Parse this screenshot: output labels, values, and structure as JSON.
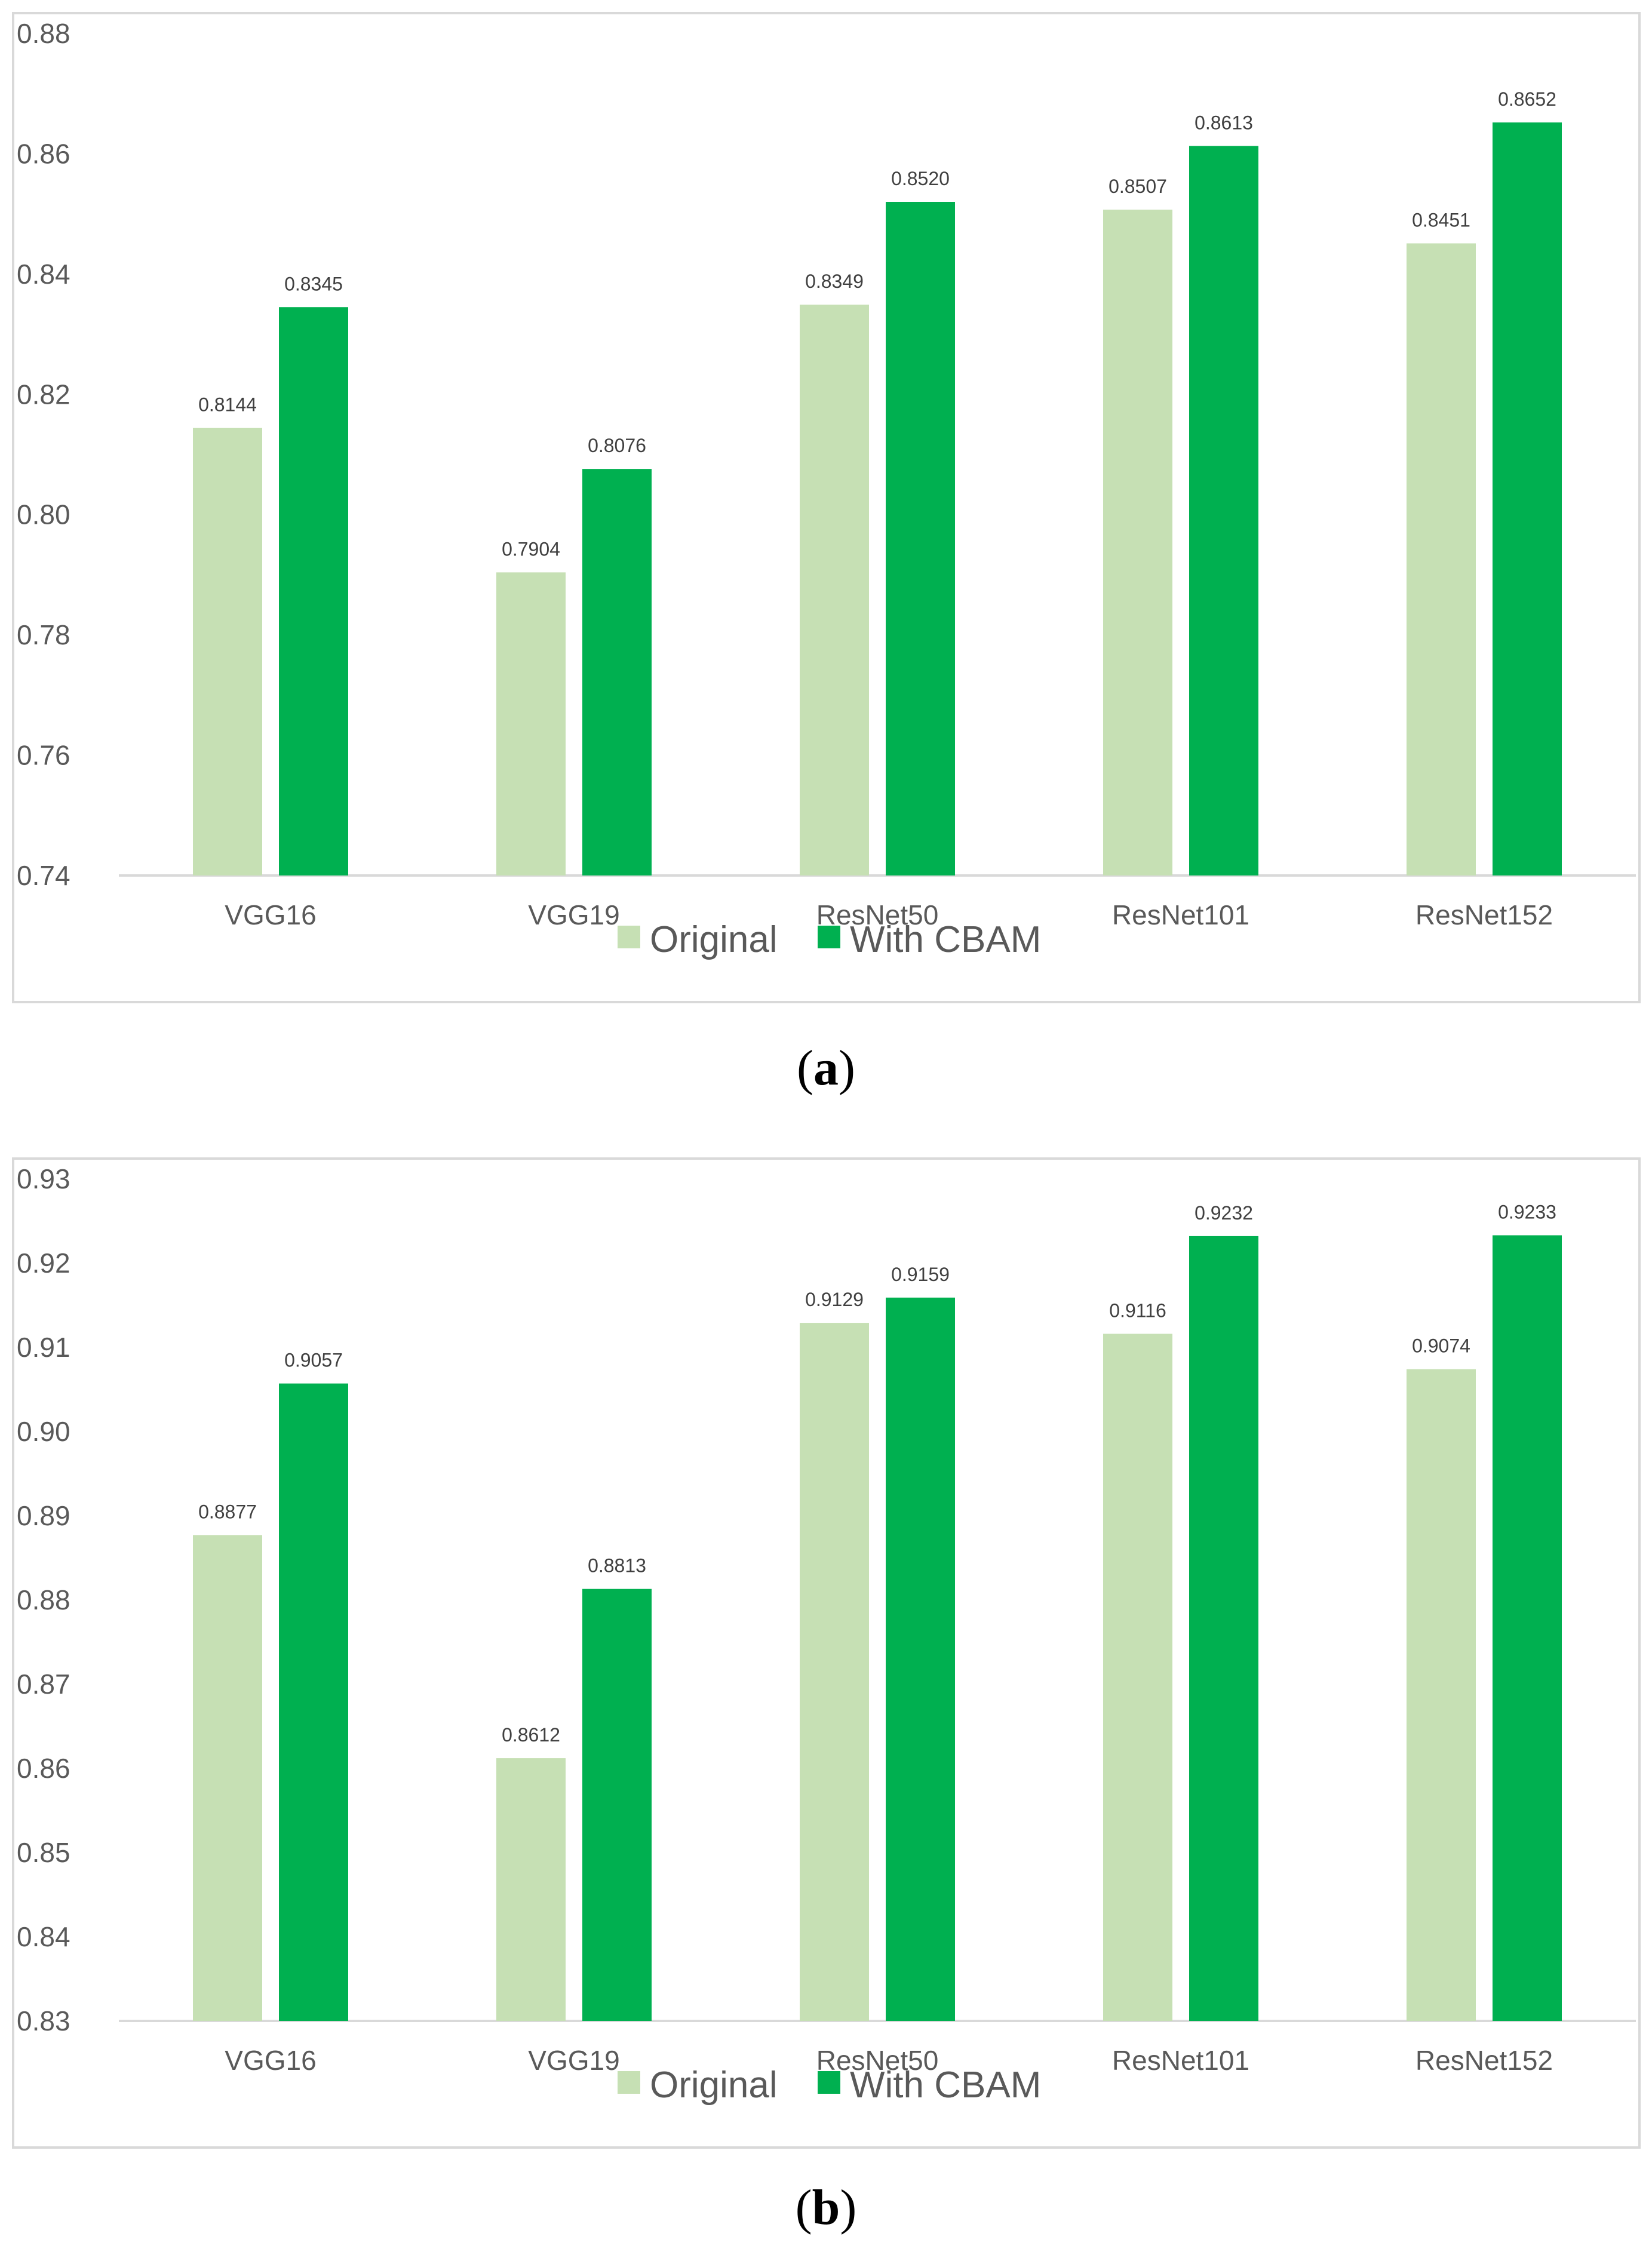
{
  "colors": {
    "original": "#c6e0b4",
    "with_cbam": "#00b050",
    "axis": "#d9d9d9",
    "text": "#595959"
  },
  "chart_data": [
    {
      "type": "bar",
      "caption": "a",
      "categories": [
        "VGG16",
        "VGG19",
        "ResNet50",
        "ResNet101",
        "ResNet152"
      ],
      "series": [
        {
          "name": "Original",
          "values": [
            0.8144,
            0.7904,
            0.8349,
            0.8507,
            0.8451
          ]
        },
        {
          "name": "With CBAM",
          "values": [
            0.8345,
            0.8076,
            0.852,
            0.8613,
            0.8652
          ]
        }
      ],
      "data_labels": [
        [
          "0.8144",
          "0.7904",
          "0.8349",
          "0.8507",
          "0.8451"
        ],
        [
          "0.8345",
          "0.8076",
          "0.8520",
          "0.8613",
          "0.8652"
        ]
      ],
      "ylim": [
        0.74,
        0.88
      ],
      "yticks": [
        "0.74",
        "0.76",
        "0.78",
        "0.80",
        "0.82",
        "0.84",
        "0.86",
        "0.88"
      ],
      "title": "",
      "xlabel": "",
      "ylabel": "",
      "legend": "bottom-center",
      "grid": false
    },
    {
      "type": "bar",
      "caption": "b",
      "categories": [
        "VGG16",
        "VGG19",
        "ResNet50",
        "ResNet101",
        "ResNet152"
      ],
      "series": [
        {
          "name": "Original",
          "values": [
            0.8877,
            0.8612,
            0.9129,
            0.9116,
            0.9074
          ]
        },
        {
          "name": "With CBAM",
          "values": [
            0.9057,
            0.8813,
            0.9159,
            0.9232,
            0.9233
          ]
        }
      ],
      "data_labels": [
        [
          "0.8877",
          "0.8612",
          "0.9129",
          "0.9116",
          "0.9074"
        ],
        [
          "0.9057",
          "0.8813",
          "0.9159",
          "0.9232",
          "0.9233"
        ]
      ],
      "ylim": [
        0.83,
        0.93
      ],
      "yticks": [
        "0.83",
        "0.84",
        "0.85",
        "0.86",
        "0.87",
        "0.88",
        "0.89",
        "0.90",
        "0.91",
        "0.92",
        "0.93"
      ],
      "title": "",
      "xlabel": "",
      "ylabel": "",
      "legend": "bottom-center",
      "grid": false
    }
  ]
}
